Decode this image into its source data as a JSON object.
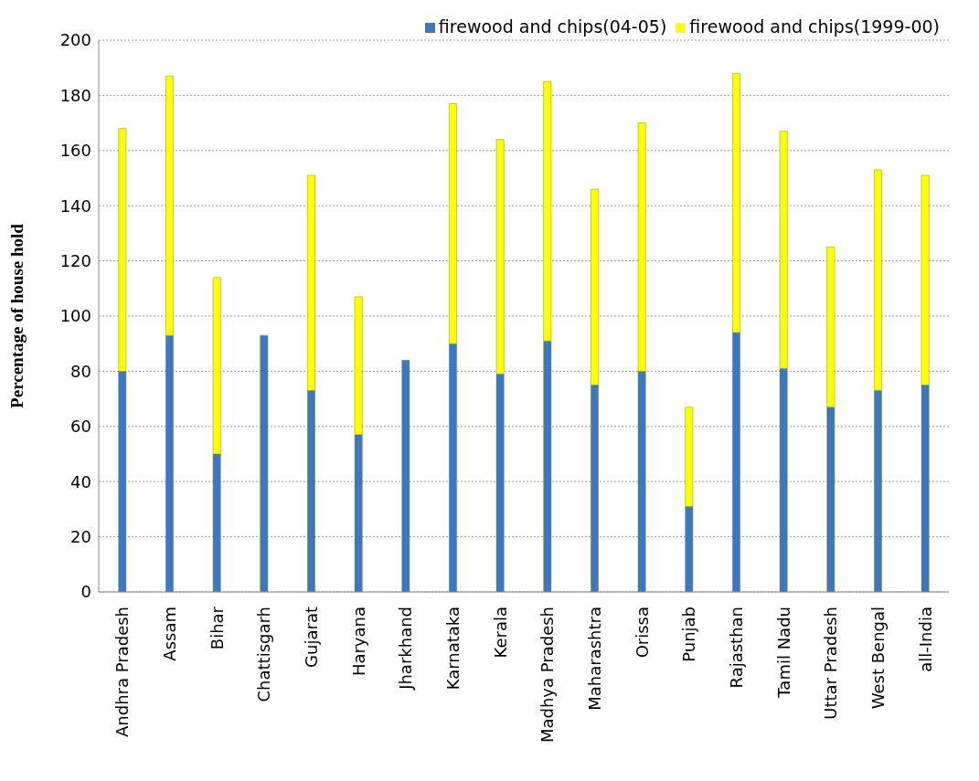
{
  "chart_data": {
    "type": "bar",
    "stacked": true,
    "ylabel": "Percentage of house hold",
    "categories": [
      "Andhra Pradesh",
      "Assam",
      "Bihar",
      "Chattisgarh",
      "Gujarat",
      "Haryana",
      "Jharkhand",
      "Karnataka",
      "Kerala",
      "Madhya Pradesh",
      "Maharashtra",
      "Orissa",
      "Punjab",
      "Rajasthan",
      "Tamil Nadu",
      "Uttar Pradesh",
      "West Bengal",
      "all-India"
    ],
    "series": [
      {
        "name": "firewood and chips(04-05)",
        "color": "#3a78c4",
        "values": [
          80,
          93,
          50,
          93,
          73,
          57,
          84,
          90,
          79,
          91,
          75,
          80,
          31,
          94,
          81,
          67,
          73,
          75
        ]
      },
      {
        "name": "firewood and chips(1999-00)",
        "color": "#ffff00",
        "values": [
          88,
          94,
          64,
          null,
          78,
          50,
          null,
          87,
          85,
          94,
          71,
          90,
          36,
          94,
          86,
          58,
          80,
          76
        ]
      }
    ],
    "ylim": [
      0,
      200
    ],
    "yticks": [
      0,
      20,
      40,
      60,
      80,
      100,
      120,
      140,
      160,
      180,
      200
    ],
    "grid": "y",
    "legend": "top right"
  }
}
